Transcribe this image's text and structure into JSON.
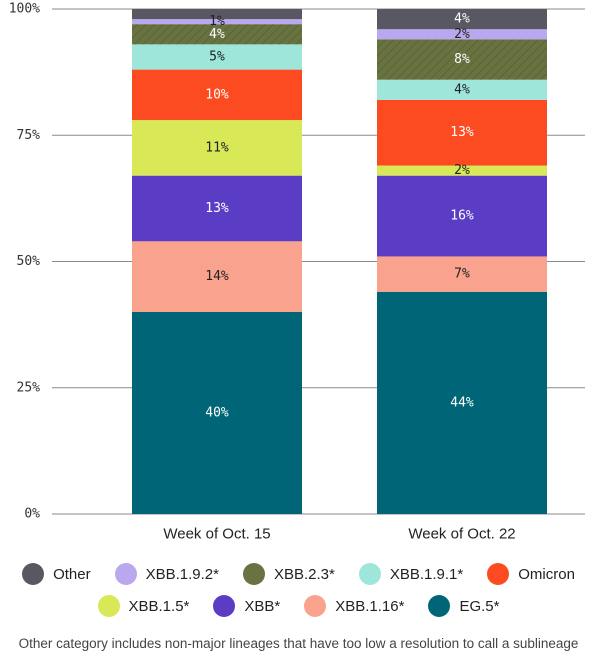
{
  "chart_data": {
    "type": "bar",
    "stacked": true,
    "categories": [
      "Week of Oct. 15",
      "Week of Oct. 22"
    ],
    "ylim": [
      0,
      100
    ],
    "yticks": [
      "0%",
      "25%",
      "50%",
      "75%",
      "100%"
    ],
    "grid": true,
    "legend_position": "bottom",
    "series": [
      {
        "name": "EG.5*",
        "color": "#006677",
        "values": [
          40,
          44
        ],
        "labels": [
          "40%",
          "44%"
        ],
        "label_color": "#ffffff"
      },
      {
        "name": "XBB.1.16*",
        "color": "#f9a38e",
        "values": [
          14,
          7
        ],
        "labels": [
          "14%",
          "7%"
        ],
        "label_color": "#222222"
      },
      {
        "name": "XBB*",
        "color": "#5b3dc5",
        "values": [
          13,
          16
        ],
        "labels": [
          "13%",
          "16%"
        ],
        "label_color": "#ffffff"
      },
      {
        "name": "XBB.1.5*",
        "color": "#d8e857",
        "values": [
          11,
          2
        ],
        "labels": [
          "11%",
          "2%"
        ],
        "label_color": "#222222"
      },
      {
        "name": "Omicron",
        "color": "#fc4b21",
        "values": [
          10,
          13
        ],
        "labels": [
          "10%",
          "13%"
        ],
        "label_color": "#ffffff"
      },
      {
        "name": "XBB.1.9.1*",
        "color": "#9ee6d9",
        "values": [
          5,
          4
        ],
        "labels": [
          "5%",
          "4%"
        ],
        "label_color": "#222222"
      },
      {
        "name": "XBB.2.3*",
        "color": "#687341",
        "values": [
          4,
          8
        ],
        "labels": [
          "4%",
          "8%"
        ],
        "label_color": "#ffffff"
      },
      {
        "name": "XBB.1.9.2*",
        "color": "#b9a7f0",
        "values": [
          1,
          2
        ],
        "labels": [
          "1%",
          "2%"
        ],
        "label_color": "#222222"
      },
      {
        "name": "Other",
        "color": "#585862",
        "values": [
          2,
          4
        ],
        "labels": [
          "",
          "4%"
        ],
        "label_color": "#ffffff"
      }
    ]
  },
  "legend": {
    "row1": [
      {
        "label": "Other",
        "color": "#585862"
      },
      {
        "label": "XBB.1.9.2*",
        "color": "#b9a7f0"
      },
      {
        "label": "XBB.2.3*",
        "color": "#687341"
      },
      {
        "label": "XBB.1.9.1*",
        "color": "#9ee6d9"
      },
      {
        "label": "Omicron",
        "color": "#fc4b21"
      }
    ],
    "row2": [
      {
        "label": "XBB.1.5*",
        "color": "#d8e857"
      },
      {
        "label": "XBB*",
        "color": "#5b3dc5"
      },
      {
        "label": "XBB.1.16*",
        "color": "#f9a38e"
      },
      {
        "label": "EG.5*",
        "color": "#006677"
      }
    ]
  },
  "footnote": "Other category includes non-major lineages that have too low a resolution to call a sublineage"
}
